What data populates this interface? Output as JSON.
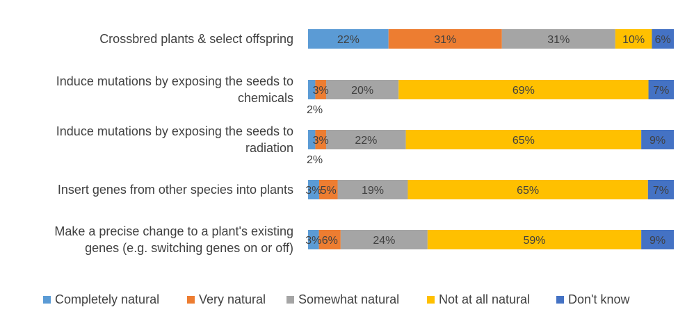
{
  "chart_data": {
    "type": "bar",
    "orientation": "horizontal-stacked-100",
    "categories": [
      "Crossbred plants & select offspring",
      "Induce mutations by exposing the seeds to chemicals",
      "Induce mutations by exposing the seeds to radiation",
      "Insert genes from other species into plants",
      "Make a precise change to a plant's existing genes (e.g. switching genes on or off)"
    ],
    "category_lines": [
      [
        "Crossbred plants & select offspring"
      ],
      [
        "Induce mutations by exposing the seeds to",
        "chemicals"
      ],
      [
        "Induce mutations by exposing the seeds to",
        "radiation"
      ],
      [
        "Insert genes from other species into plants"
      ],
      [
        "Make a precise change to a plant's existing",
        "genes (e.g. switching genes on or off)"
      ]
    ],
    "series": [
      {
        "name": "Completely natural",
        "color": "#5B9BD5",
        "values": [
          22,
          2,
          2,
          3,
          3
        ],
        "labels": [
          "22%",
          "2%",
          "2%",
          "3%",
          "3%"
        ]
      },
      {
        "name": "Very natural",
        "color": "#ED7D31",
        "values": [
          31,
          3,
          3,
          5,
          6
        ],
        "labels": [
          "31%",
          "3%",
          "3%",
          "5%",
          "6%"
        ]
      },
      {
        "name": "Somewhat natural",
        "color": "#A5A5A5",
        "values": [
          31,
          20,
          22,
          19,
          24
        ],
        "labels": [
          "31%",
          "20%",
          "22%",
          "19%",
          "24%"
        ]
      },
      {
        "name": "Not at all natural",
        "color": "#FFC000",
        "values": [
          10,
          69,
          65,
          65,
          59
        ],
        "labels": [
          "10%",
          "69%",
          "65%",
          "65%",
          "59%"
        ]
      },
      {
        "name": "Don't know",
        "color": "#4472C4",
        "values": [
          6,
          7,
          9,
          7,
          9
        ],
        "labels": [
          "6%",
          "7%",
          "9%",
          "7%",
          "9%"
        ]
      }
    ],
    "xlim": [
      0,
      100
    ],
    "legend_position": "bottom",
    "grid": false
  }
}
